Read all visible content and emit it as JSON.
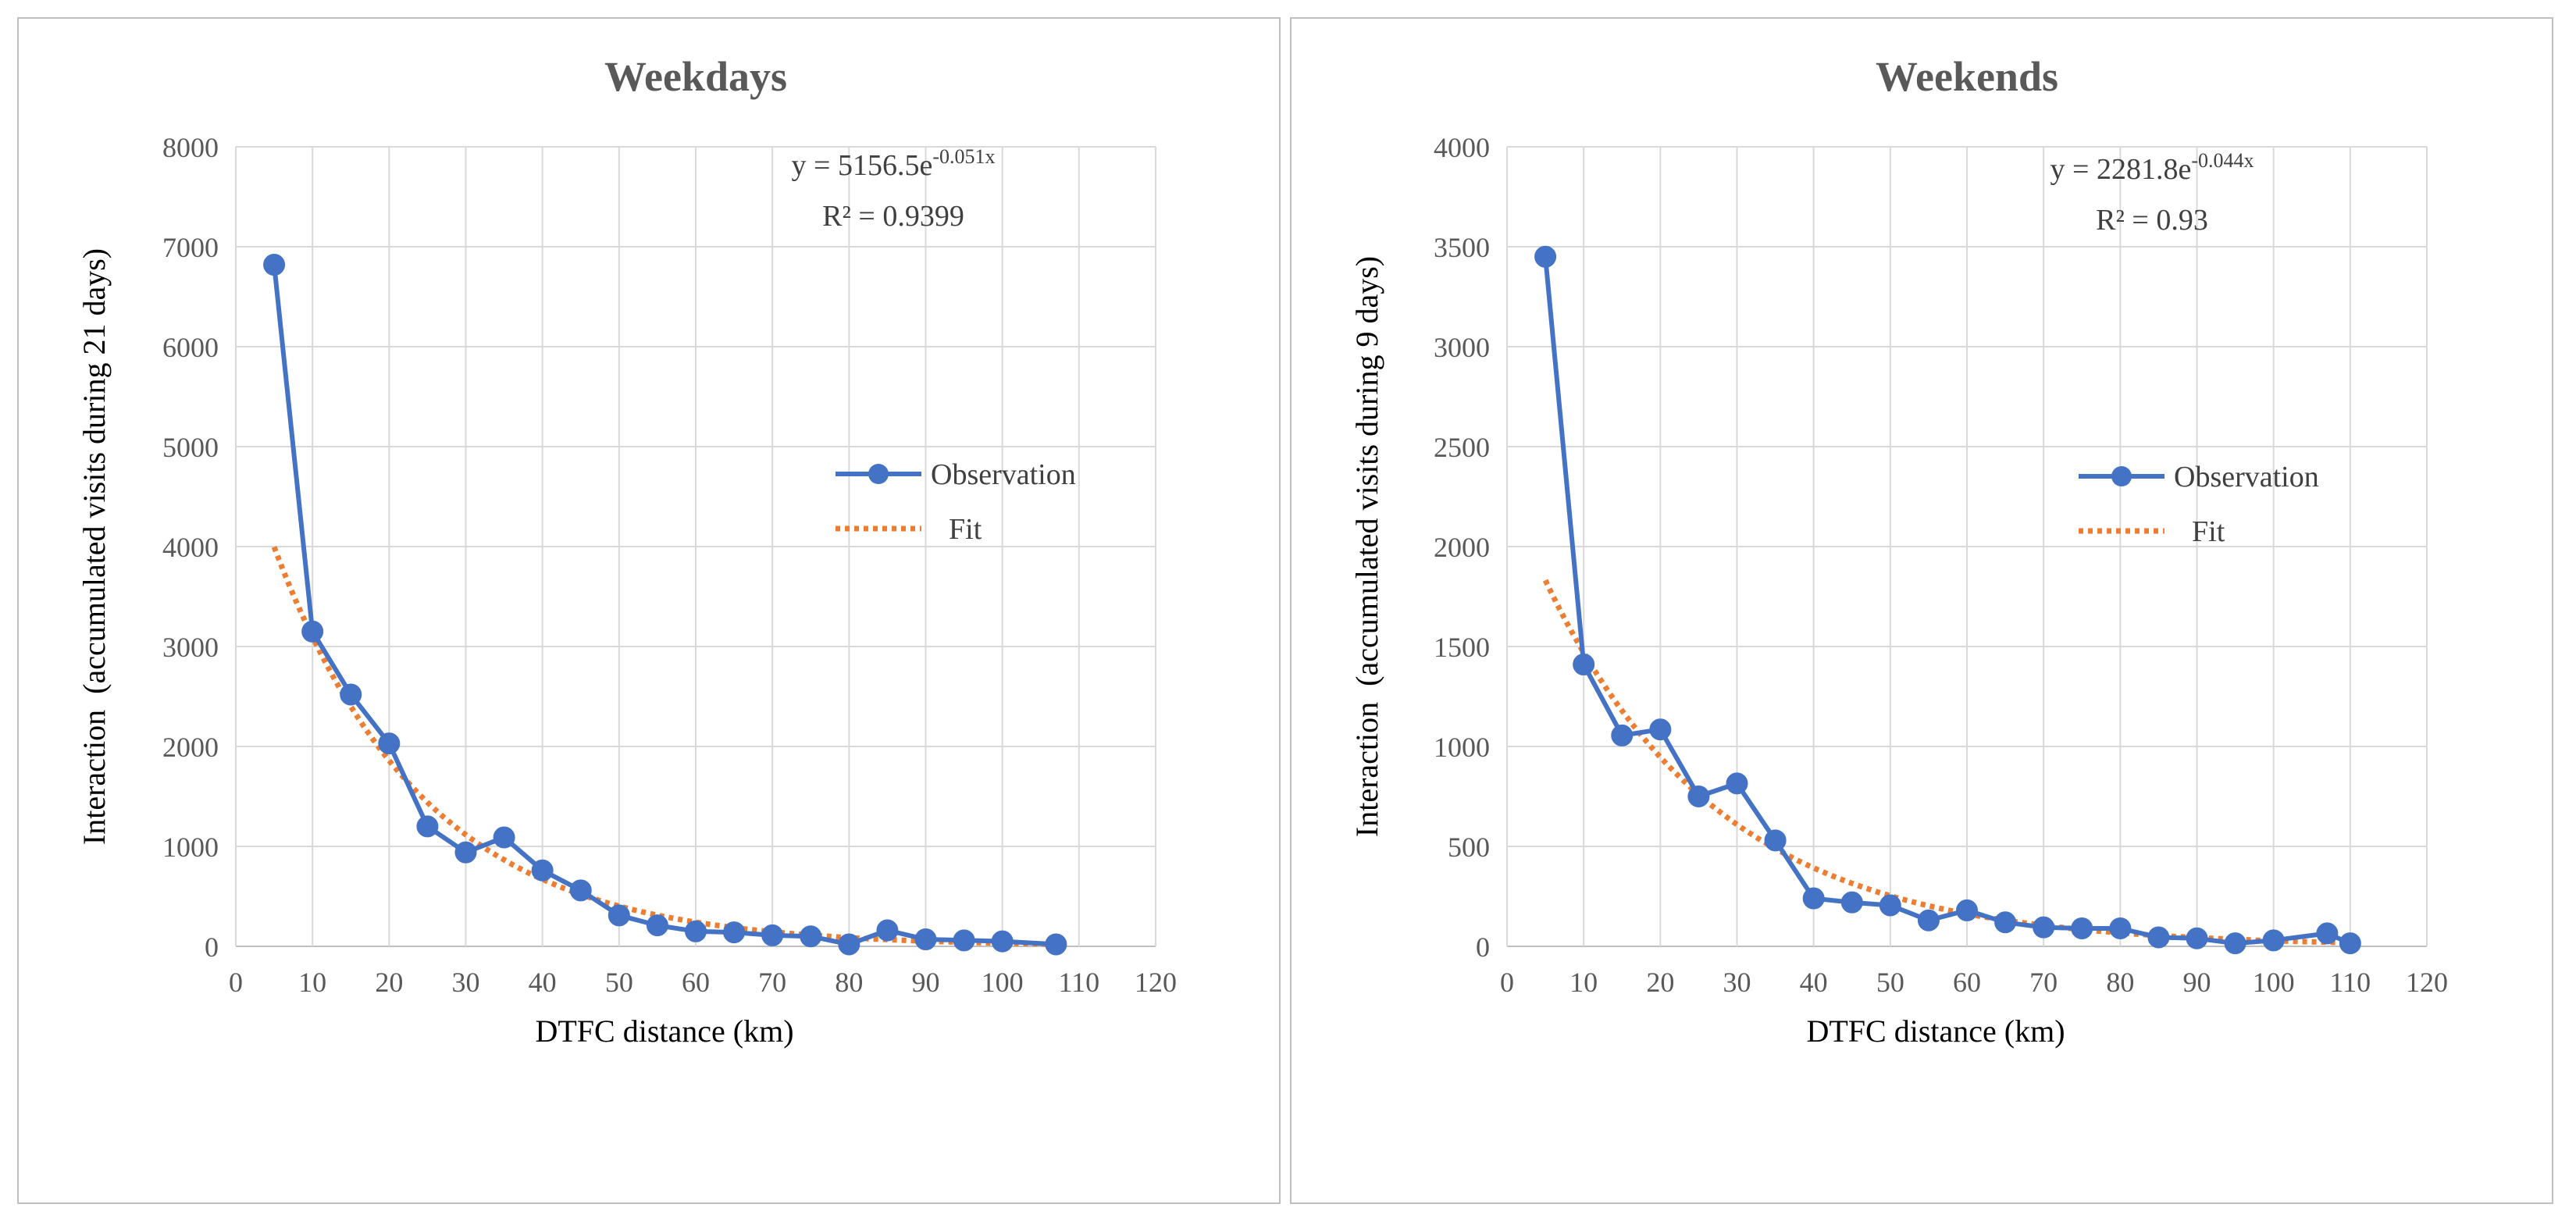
{
  "chart_data": [
    {
      "type": "line",
      "title": "Weekdays",
      "xlabel": "DTFC distance (km)",
      "ylabel": "Interaction  (accumulated visits during 21 days)",
      "xlim": [
        0,
        120
      ],
      "ylim": [
        0,
        8000
      ],
      "xticks": [
        0,
        10,
        20,
        30,
        40,
        50,
        60,
        70,
        80,
        90,
        100,
        110,
        120
      ],
      "yticks": [
        0,
        1000,
        2000,
        3000,
        4000,
        5000,
        6000,
        7000,
        8000
      ],
      "grid": true,
      "legend_position": "right",
      "equation": {
        "prefix": "y = 5156.5e",
        "exponent": "-0.051x"
      },
      "r_squared": "R² = 0.9399",
      "fit": {
        "a": 5156.5,
        "b": -0.051,
        "x_start": 5,
        "x_end": 107
      },
      "series": [
        {
          "name": "Observation",
          "color": "#4472c4",
          "x": [
            5,
            10,
            15,
            20,
            25,
            30,
            35,
            40,
            45,
            50,
            55,
            60,
            65,
            70,
            75,
            80,
            85,
            90,
            95,
            100,
            107
          ],
          "values": [
            6820,
            3150,
            2520,
            2030,
            1200,
            940,
            1090,
            760,
            560,
            310,
            210,
            150,
            140,
            110,
            100,
            20,
            160,
            70,
            60,
            50,
            20
          ]
        },
        {
          "name": "Fit",
          "color": "#ed7d31"
        }
      ]
    },
    {
      "type": "line",
      "title": "Weekends",
      "xlabel": "DTFC distance (km)",
      "ylabel": "Interaction  (accumulated visits during 9 days)",
      "xlim": [
        0,
        120
      ],
      "ylim": [
        0,
        4000
      ],
      "xticks": [
        0,
        10,
        20,
        30,
        40,
        50,
        60,
        70,
        80,
        90,
        100,
        110,
        120
      ],
      "yticks": [
        0,
        500,
        1000,
        1500,
        2000,
        2500,
        3000,
        3500,
        4000
      ],
      "grid": true,
      "legend_position": "right",
      "equation": {
        "prefix": "y = 2281.8e",
        "exponent": "-0.044x"
      },
      "r_squared": "R² = 0.93",
      "fit": {
        "a": 2281.8,
        "b": -0.044,
        "x_start": 5,
        "x_end": 110
      },
      "series": [
        {
          "name": "Observation",
          "color": "#4472c4",
          "x": [
            5,
            10,
            15,
            20,
            25,
            30,
            35,
            40,
            45,
            50,
            55,
            60,
            65,
            70,
            75,
            80,
            85,
            90,
            95,
            100,
            107,
            110
          ],
          "values": [
            3450,
            1410,
            1055,
            1085,
            750,
            815,
            530,
            240,
            220,
            205,
            130,
            180,
            120,
            95,
            90,
            90,
            45,
            40,
            15,
            30,
            65,
            15
          ]
        },
        {
          "name": "Fit",
          "color": "#ed7d31"
        }
      ]
    }
  ]
}
